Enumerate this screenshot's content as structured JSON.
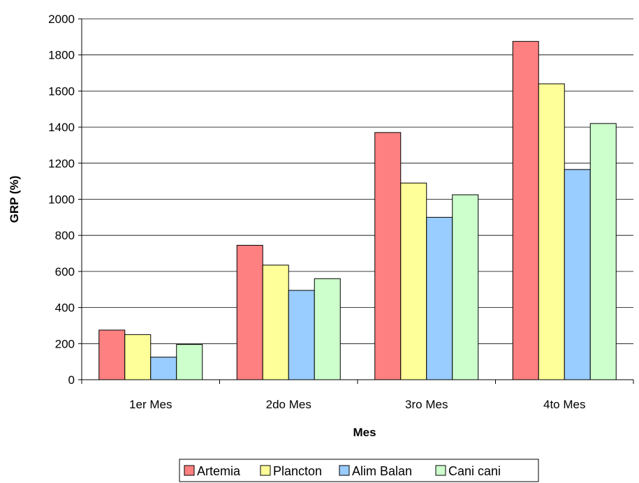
{
  "chart_data": {
    "type": "bar",
    "categories": [
      "1er Mes",
      "2do Mes",
      "3ro Mes",
      "4to Mes"
    ],
    "series": [
      {
        "name": "Artemia",
        "color": "#ff8080",
        "values": [
          275,
          745,
          1370,
          1875
        ]
      },
      {
        "name": "Plancton",
        "color": "#ffff99",
        "values": [
          250,
          635,
          1090,
          1640
        ]
      },
      {
        "name": "Alim Balan",
        "color": "#99ccff",
        "values": [
          125,
          495,
          900,
          1165
        ]
      },
      {
        "name": "Cani cani",
        "color": "#ccffcc",
        "values": [
          195,
          560,
          1025,
          1420
        ]
      }
    ],
    "xlabel": "Mes",
    "ylabel": "GRP (%)",
    "ylim": [
      0,
      2000
    ],
    "yticks": [
      "0",
      "200",
      "400",
      "600",
      "800",
      "1000",
      "1200",
      "1400",
      "1600",
      "1800",
      "2000"
    ],
    "grid": true,
    "legend_position": "bottom"
  }
}
